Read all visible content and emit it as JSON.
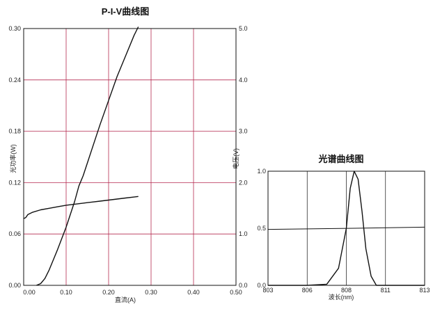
{
  "chart_data": [
    {
      "type": "line",
      "title": "P-I-V曲线图",
      "xlabel": "直流(A)",
      "ylabel_left": "光功率(W)",
      "ylabel_right": "电压(V)",
      "xlim": [
        0.0,
        0.5
      ],
      "ylim_left": [
        0.0,
        0.3
      ],
      "ylim_right": [
        0.0,
        5.0
      ],
      "x_ticks": [
        "0.00",
        "0.10",
        "0.20",
        "0.30",
        "0.40",
        "0.50"
      ],
      "y_left_ticks": [
        "0.00",
        "0.06",
        "0.12",
        "0.18",
        "0.24",
        "0.30"
      ],
      "y_right_ticks": [
        "0.0",
        "1.0",
        "2.0",
        "3.0",
        "4.0",
        "5.0"
      ],
      "grid": true,
      "series": [
        {
          "axis": "left",
          "x": [
            0.03,
            0.04,
            0.05,
            0.06,
            0.07,
            0.08,
            0.1,
            0.12,
            0.13,
            0.14,
            0.16,
            0.18,
            0.2,
            0.22,
            0.24,
            0.26,
            0.27
          ],
          "y": [
            0.0,
            0.002,
            0.008,
            0.018,
            0.03,
            0.042,
            0.068,
            0.098,
            0.116,
            0.128,
            0.158,
            0.188,
            0.216,
            0.244,
            0.268,
            0.292,
            0.302
          ]
        },
        {
          "axis": "right",
          "x": [
            0.0,
            0.005,
            0.01,
            0.02,
            0.04,
            0.06,
            0.08,
            0.1,
            0.12,
            0.14,
            0.16,
            0.18,
            0.2,
            0.22,
            0.24,
            0.26,
            0.27
          ],
          "y": [
            1.3,
            1.32,
            1.38,
            1.42,
            1.47,
            1.5,
            1.53,
            1.56,
            1.58,
            1.6,
            1.62,
            1.64,
            1.66,
            1.68,
            1.7,
            1.72,
            1.73
          ]
        }
      ]
    },
    {
      "type": "line",
      "title": "光谱曲线图",
      "xlabel": "波长(nm)",
      "xlim": [
        803,
        813
      ],
      "ylim": [
        0.0,
        1.0
      ],
      "x_ticks": [
        "803",
        "806",
        "808",
        "811",
        "813"
      ],
      "y_ticks": [
        "0.0",
        "0.5",
        "1.0"
      ],
      "grid": true,
      "series": [
        {
          "x": [
            803,
            806,
            807,
            807.6,
            808.0,
            808.3,
            808.6,
            808.9,
            809.2,
            809.5,
            809.9,
            810.3,
            811,
            813
          ],
          "y": [
            0.0,
            0.0,
            0.01,
            0.15,
            0.5,
            0.85,
            1.0,
            0.93,
            0.65,
            0.32,
            0.08,
            0.0,
            0.0,
            0.0
          ]
        },
        {
          "x": [
            803,
            808.6,
            813
          ],
          "y": [
            0.49,
            0.5,
            0.51
          ]
        }
      ]
    }
  ]
}
